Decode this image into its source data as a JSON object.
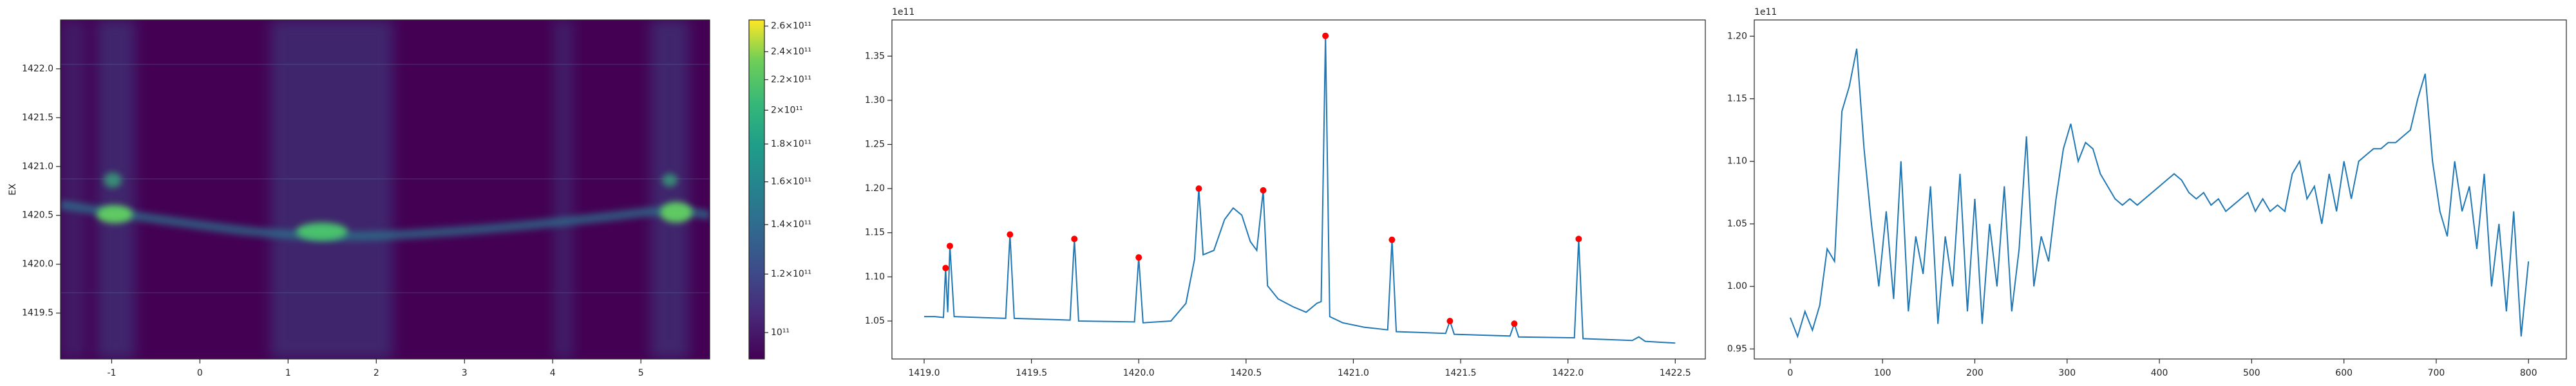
{
  "chart_data": [
    {
      "type": "heatmap",
      "ylabel": "EX",
      "xlim": [
        -1.58,
        5.78
      ],
      "ylim": [
        1419.03,
        1422.5
      ],
      "xticks": [
        -1,
        0,
        1,
        2,
        3,
        4,
        5
      ],
      "yticks": [
        1419.5,
        {
          "value": 1420,
          "label": "1420.0"
        },
        1420.5,
        {
          "value": 1421,
          "label": "1421.0"
        },
        1421.5,
        {
          "value": 1422,
          "label": "1422.0"
        }
      ],
      "colorbar": {
        "scale": "log",
        "lim": [
          92100000000,
          265000000000
        ],
        "ticks": [
          {
            "value": 100000000000,
            "label": "10¹¹"
          },
          {
            "value": 120000000000,
            "label": "1.2×10¹¹"
          },
          {
            "value": 140000000000,
            "label": "1.4×10¹¹"
          },
          {
            "value": 160000000000,
            "label": "1.6×10¹¹"
          },
          {
            "value": 180000000000,
            "label": "1.8×10¹¹"
          },
          {
            "value": 200000000000,
            "label": "2×10¹¹"
          },
          {
            "value": 220000000000,
            "label": "2.2×10¹¹"
          },
          {
            "value": 240000000000,
            "label": "2.4×10¹¹"
          },
          {
            "value": 260000000000,
            "label": "2.6×10¹¹"
          }
        ]
      }
    },
    {
      "type": "line",
      "offset_text": "1e11",
      "xlim": [
        1418.85,
        1422.64
      ],
      "ylim": [
        1.007,
        1.391
      ],
      "xticks": [
        {
          "value": 1419,
          "label": "1419.0"
        },
        1419.5,
        {
          "value": 1420,
          "label": "1420.0"
        },
        1420.5,
        {
          "value": 1421,
          "label": "1421.0"
        },
        1421.5,
        {
          "value": 1422,
          "label": "1422.0"
        },
        1422.5
      ],
      "yticks": [
        1.05,
        {
          "value": 1.1,
          "label": "1.10"
        },
        1.15,
        {
          "value": 1.2,
          "label": "1.20"
        },
        1.25,
        {
          "value": 1.3,
          "label": "1.30"
        },
        1.35
      ],
      "series": [
        {
          "color": "#1f77b4",
          "x": [
            1419.0,
            1419.05,
            1419.09,
            1419.1,
            1419.11,
            1419.12,
            1419.14,
            1419.38,
            1419.4,
            1419.42,
            1419.68,
            1419.7,
            1419.72,
            1419.98,
            1420.0,
            1420.02,
            1420.15,
            1420.22,
            1420.26,
            1420.28,
            1420.3,
            1420.35,
            1420.4,
            1420.44,
            1420.48,
            1420.52,
            1420.55,
            1420.58,
            1420.6,
            1420.65,
            1420.72,
            1420.78,
            1420.83,
            1420.85,
            1420.87,
            1420.89,
            1420.95,
            1421.05,
            1421.16,
            1421.18,
            1421.2,
            1421.43,
            1421.45,
            1421.47,
            1421.73,
            1421.75,
            1421.77,
            1422.03,
            1422.05,
            1422.07,
            1422.3,
            1422.33,
            1422.36,
            1422.5
          ],
          "values": [
            1.055,
            1.055,
            1.054,
            1.11,
            1.06,
            1.135,
            1.055,
            1.053,
            1.148,
            1.053,
            1.051,
            1.143,
            1.05,
            1.049,
            1.122,
            1.048,
            1.05,
            1.07,
            1.12,
            1.2,
            1.125,
            1.13,
            1.165,
            1.178,
            1.17,
            1.14,
            1.13,
            1.198,
            1.09,
            1.075,
            1.066,
            1.06,
            1.07,
            1.072,
            1.373,
            1.055,
            1.048,
            1.043,
            1.04,
            1.142,
            1.038,
            1.036,
            1.05,
            1.035,
            1.033,
            1.047,
            1.032,
            1.031,
            1.143,
            1.03,
            1.028,
            1.032,
            1.027,
            1.025
          ]
        },
        {
          "color": "#ff0000",
          "marker": "o",
          "x": [
            1419.1,
            1419.12,
            1419.4,
            1419.7,
            1420.0,
            1420.28,
            1420.58,
            1420.87,
            1421.18,
            1421.45,
            1421.75,
            1422.05
          ],
          "values": [
            1.11,
            1.135,
            1.148,
            1.143,
            1.122,
            1.2,
            1.198,
            1.373,
            1.142,
            1.05,
            1.047,
            1.143
          ]
        }
      ]
    },
    {
      "type": "line",
      "offset_text": "1e11",
      "xlim": [
        -39,
        841
      ],
      "ylim": [
        0.942,
        1.213
      ],
      "xticks": [
        0,
        100,
        200,
        300,
        400,
        500,
        600,
        700,
        800
      ],
      "yticks": [
        0.95,
        {
          "value": 1,
          "label": "1.00"
        },
        1.05,
        {
          "value": 1.1,
          "label": "1.10"
        },
        1.15,
        {
          "value": 1.2,
          "label": "1.20"
        }
      ],
      "series": [
        {
          "color": "#1f77b4",
          "x": [
            0,
            8,
            16,
            24,
            32,
            40,
            48,
            56,
            64,
            72,
            80,
            88,
            96,
            104,
            112,
            120,
            128,
            136,
            144,
            152,
            160,
            168,
            176,
            184,
            192,
            200,
            208,
            216,
            224,
            232,
            240,
            248,
            256,
            264,
            272,
            280,
            288,
            296,
            304,
            312,
            320,
            328,
            336,
            344,
            352,
            360,
            368,
            376,
            384,
            392,
            400,
            408,
            416,
            424,
            432,
            440,
            448,
            456,
            464,
            472,
            480,
            488,
            496,
            504,
            512,
            520,
            528,
            536,
            544,
            552,
            560,
            568,
            576,
            584,
            592,
            600,
            608,
            616,
            624,
            632,
            640,
            648,
            656,
            664,
            672,
            680,
            688,
            696,
            704,
            712,
            720,
            728,
            736,
            744,
            752,
            760,
            768,
            776,
            784,
            792,
            800
          ],
          "values": [
            0.975,
            0.96,
            0.98,
            0.965,
            0.985,
            1.03,
            1.02,
            1.14,
            1.16,
            1.19,
            1.11,
            1.05,
            1.0,
            1.06,
            0.99,
            1.1,
            0.98,
            1.04,
            1.01,
            1.08,
            0.97,
            1.04,
            1.0,
            1.09,
            0.98,
            1.07,
            0.97,
            1.05,
            1.0,
            1.08,
            0.98,
            1.03,
            1.12,
            1.0,
            1.04,
            1.02,
            1.07,
            1.11,
            1.13,
            1.1,
            1.115,
            1.11,
            1.09,
            1.08,
            1.07,
            1.065,
            1.07,
            1.065,
            1.07,
            1.075,
            1.08,
            1.085,
            1.09,
            1.085,
            1.075,
            1.07,
            1.075,
            1.065,
            1.07,
            1.06,
            1.065,
            1.07,
            1.075,
            1.06,
            1.07,
            1.06,
            1.065,
            1.06,
            1.09,
            1.1,
            1.07,
            1.08,
            1.05,
            1.09,
            1.06,
            1.1,
            1.07,
            1.1,
            1.105,
            1.11,
            1.11,
            1.115,
            1.115,
            1.12,
            1.125,
            1.15,
            1.17,
            1.1,
            1.06,
            1.04,
            1.1,
            1.06,
            1.08,
            1.03,
            1.09,
            1.0,
            1.05,
            0.98,
            1.06,
            0.96,
            1.02
          ]
        }
      ]
    }
  ]
}
